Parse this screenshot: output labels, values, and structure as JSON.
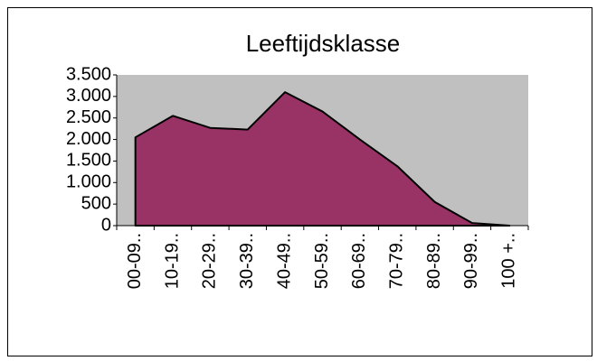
{
  "chart_data": {
    "type": "area",
    "title": "Leeftijdsklasse",
    "categories": [
      "00-09..",
      "10-19..",
      "20-29..",
      "30-39..",
      "40-49..",
      "50-59..",
      "60-69..",
      "70-79..",
      "80-89..",
      "90-99..",
      "100 +.."
    ],
    "values": [
      2050,
      2550,
      2270,
      2230,
      3100,
      2650,
      2000,
      1380,
      550,
      60,
      0
    ],
    "color": "#993366",
    "plot_background": "#c0c0c0",
    "ylim": [
      0,
      3500
    ],
    "yticks": [
      0,
      500,
      {
        "value": 1000,
        "label": "1.000"
      },
      {
        "value": 1500,
        "label": "1.500"
      },
      {
        "value": 2000,
        "label": "2.000"
      },
      {
        "value": 2500,
        "label": "2.500"
      },
      {
        "value": 3000,
        "label": "3.000"
      },
      {
        "value": 3500,
        "label": "3.500"
      }
    ]
  }
}
